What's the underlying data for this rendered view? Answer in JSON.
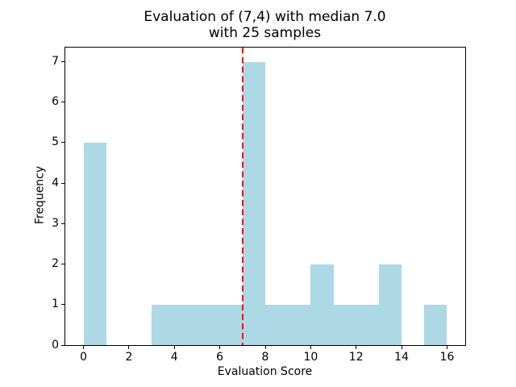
{
  "chart_data": {
    "type": "bar",
    "subtype": "histogram",
    "title": "Evaluation of (7,4) with median 7.0\nwith 25 samples",
    "title_line1": "Evaluation of (7,4) with median 7.0",
    "title_line2": "with 25 samples",
    "xlabel": "Evaluation Score",
    "ylabel": "Frequency",
    "n_samples": 25,
    "median": 7.0,
    "bin_edges": [
      0,
      1,
      2,
      3,
      4,
      5,
      6,
      7,
      8,
      9,
      10,
      11,
      12,
      13,
      14,
      15,
      16
    ],
    "counts": [
      5,
      0,
      0,
      1,
      1,
      1,
      1,
      7,
      1,
      1,
      2,
      1,
      1,
      2,
      0,
      1
    ],
    "median_line_x": 7.0,
    "xticks": [
      0,
      2,
      4,
      6,
      8,
      10,
      12,
      14,
      16
    ],
    "yticks": [
      0,
      1,
      2,
      3,
      4,
      5,
      6,
      7
    ],
    "xlim": [
      -0.8,
      16.8
    ],
    "ylim": [
      0,
      7.35
    ],
    "bar_color": "#ADD8E6",
    "median_line_color": "#FF0000",
    "grid": false,
    "legend": "none"
  }
}
